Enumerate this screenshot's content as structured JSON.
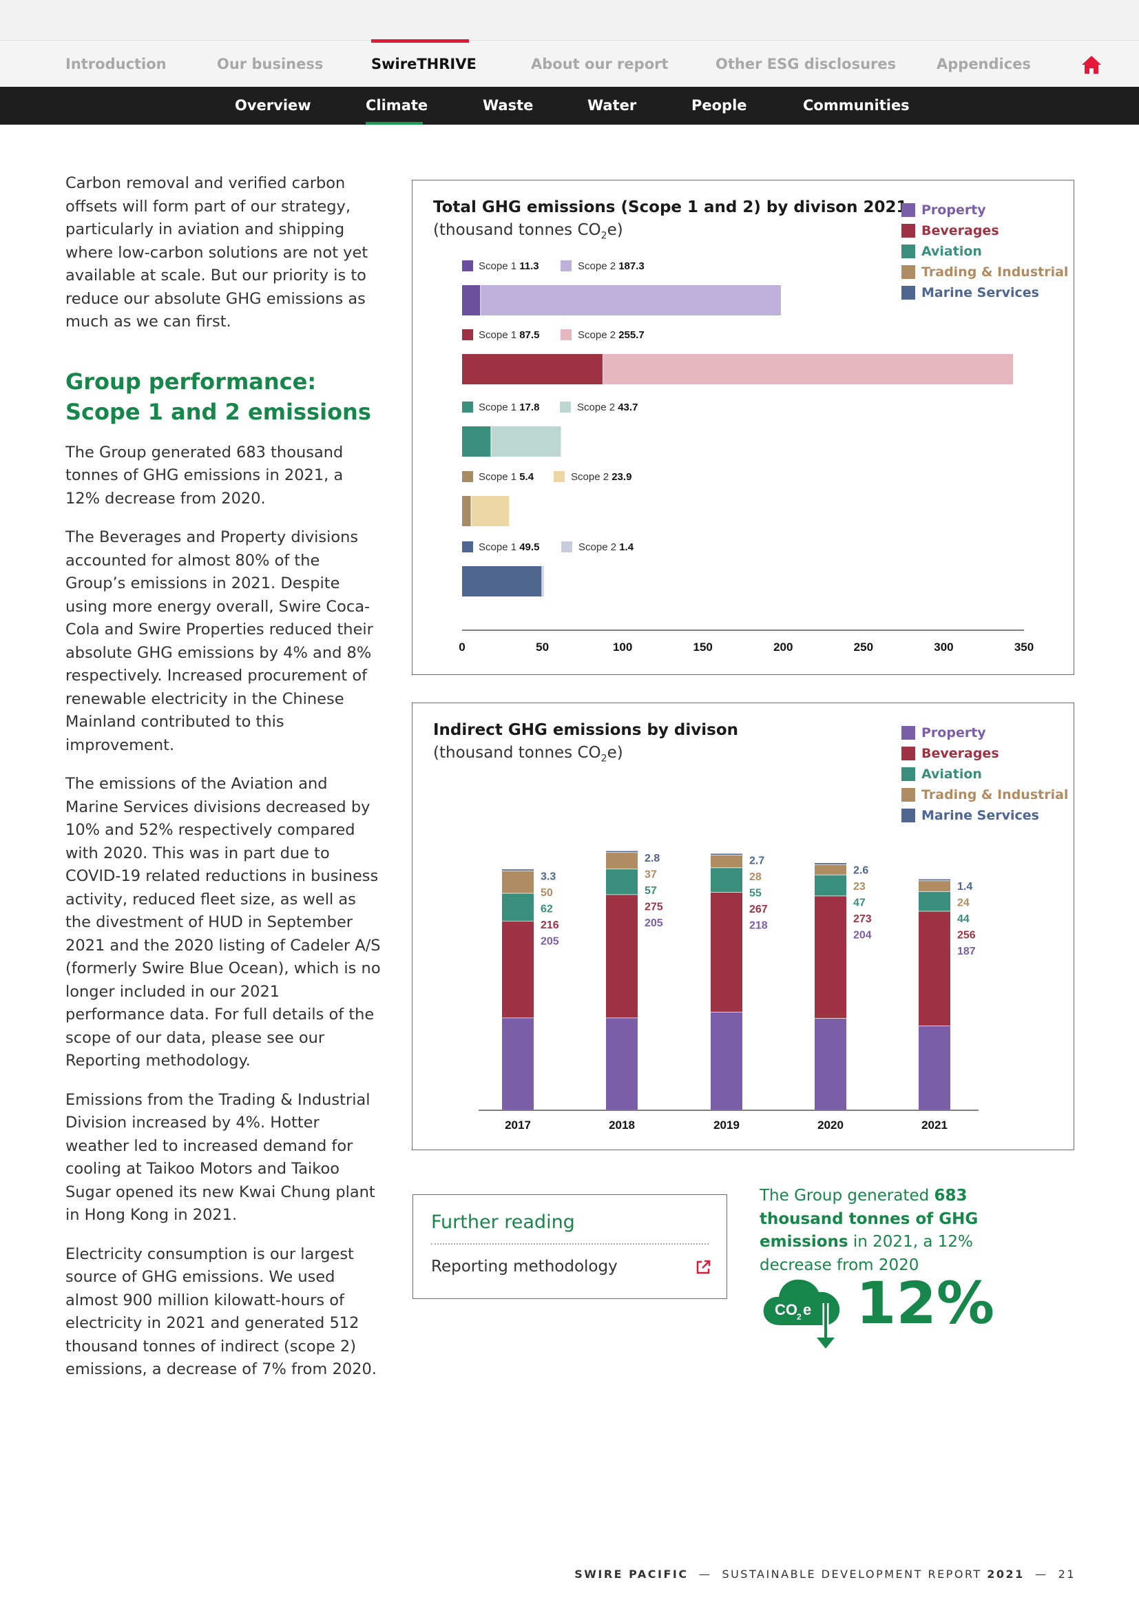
{
  "nav": {
    "tabs": [
      {
        "label": "Introduction"
      },
      {
        "label": "Our business"
      },
      {
        "label": "SwireTHRIVE"
      },
      {
        "label": "About our report"
      },
      {
        "label": "Other ESG disclosures"
      },
      {
        "label": "Appendices"
      }
    ],
    "active_tab": "SwireTHRIVE",
    "home_icon": "home-icon",
    "accent_color": "#e31937"
  },
  "subnav": {
    "items": [
      {
        "label": "Overview"
      },
      {
        "label": "Climate"
      },
      {
        "label": "Waste"
      },
      {
        "label": "Water"
      },
      {
        "label": "People"
      },
      {
        "label": "Communities"
      }
    ],
    "active_item": "Climate",
    "accent_color": "#1a9a55"
  },
  "body": {
    "intro": "Carbon removal and verified carbon offsets will form part of our strategy, particularly in aviation and shipping where low-carbon solutions are not yet available at scale. But our priority is to reduce our absolute GHG emissions as much as we can first.",
    "heading": "Group performance: Scope 1 and 2 emissions",
    "paragraphs": [
      "The Group generated 683 thousand tonnes of GHG emissions in 2021, a 12% decrease from 2020.",
      "The Beverages and Property divisions accounted for almost 80% of the Group’s emissions in 2021. Despite using more energy overall, Swire Coca-Cola and Swire Properties reduced their absolute GHG emissions by 4% and 8% respectively. Increased procurement of renewable electricity in the Chinese Mainland contributed to this improvement.",
      "The emissions of the Aviation and Marine Services divisions decreased by 10% and 52% respectively compared with 2020. This was in part due to COVID-19 related reductions in business activity, reduced fleet size, as well as the divestment of HUD in September 2021 and the 2020 listing of Cadeler A/S (formerly Swire Blue Ocean), which is no longer included in our 2021 performance data. For full details of the scope of our data, please see our Reporting methodology.",
      "Emissions from the Trading & Industrial Division increased by 4%. Hotter weather led to increased demand for cooling at Taikoo Motors and Taikoo Sugar opened its new Kwai Chung plant in Hong Kong in 2021.",
      "Electricity consumption is our largest source of GHG emissions. We used almost 900 million kilowatt-hours of electricity in 2021 and generated 512 thousand tonnes of indirect (scope 2) emissions, a decrease of 7% from 2020."
    ]
  },
  "further_reading": {
    "title": "Further reading",
    "link": "Reporting methodology",
    "link_icon": "external-link-icon"
  },
  "highlight": {
    "pre": "The Group generated ",
    "bold": "683 thousand tonnes of GHG emissions",
    "post": " in 2021, a 12% decrease from 2020",
    "icon": "co2e-cloud-down-icon",
    "icon_label": "CO",
    "icon_sub": "2",
    "icon_suffix": "e",
    "stat": "12%"
  },
  "footer": {
    "brand": "SWIRE PACIFIC",
    "sep": "—",
    "report": "SUSTAINABLE DEVELOPMENT REPORT",
    "year": "2021",
    "page": "21"
  },
  "legend": [
    {
      "name": "Property",
      "color": "#7a5ea8"
    },
    {
      "name": "Beverages",
      "color": "#9e3344"
    },
    {
      "name": "Aviation",
      "color": "#3a8f7c"
    },
    {
      "name": "Trading & Industrial",
      "color": "#b08c62"
    },
    {
      "name": "Marine Services",
      "color": "#4f6691"
    }
  ],
  "chart_data": [
    {
      "type": "bar",
      "orientation": "horizontal",
      "stacked": true,
      "title": "Total GHG emissions (Scope 1 and 2) by divison 2021",
      "subtitle": "(thousand tonnes CO",
      "subtitle_sub": "2",
      "subtitle_end": "e)",
      "categories": [
        "Property",
        "Beverages",
        "Aviation",
        "Trading & Industrial",
        "Marine Services"
      ],
      "scope1_label": "Scope 1",
      "scope2_label": "Scope 2",
      "series": [
        {
          "name": "Scope 1",
          "values": [
            11.3,
            87.5,
            17.8,
            5.4,
            49.5
          ],
          "colors": [
            "#6a4f9c",
            "#9e3344",
            "#3a8f7c",
            "#a78b66",
            "#4f6691"
          ]
        },
        {
          "name": "Scope 2",
          "values": [
            187.3,
            255.7,
            43.7,
            23.9,
            1.4
          ],
          "colors": [
            "#bdb0d9",
            "#e5b8bf",
            "#bcd7d2",
            "#ecd7a4",
            "#c8ccdc"
          ]
        }
      ],
      "xlim": [
        0,
        350
      ],
      "xticks": [
        "0",
        "50",
        "100",
        "150",
        "200",
        "250",
        "300",
        "350"
      ]
    },
    {
      "type": "bar",
      "orientation": "vertical",
      "stacked": true,
      "title": "Indirect GHG emissions by divison",
      "subtitle": "(thousand tonnes CO",
      "subtitle_sub": "2",
      "subtitle_end": "e)",
      "categories": [
        "2017",
        "2018",
        "2019",
        "2020",
        "2021"
      ],
      "series": [
        {
          "name": "Property",
          "color": "#7a5ea8",
          "values": [
            205,
            205,
            218,
            204,
            187
          ]
        },
        {
          "name": "Beverages",
          "color": "#9e3344",
          "values": [
            216,
            275,
            267,
            273,
            256
          ]
        },
        {
          "name": "Aviation",
          "color": "#3a8f7c",
          "values": [
            62,
            57,
            55,
            47,
            44
          ]
        },
        {
          "name": "Trading & Industrial",
          "color": "#b08c62",
          "values": [
            50,
            37,
            28,
            23,
            24
          ]
        },
        {
          "name": "Marine Services",
          "color": "#4f6691",
          "values": [
            3.3,
            2.8,
            2.7,
            2.6,
            1.4
          ]
        }
      ],
      "ylim": [
        0,
        600
      ]
    }
  ]
}
